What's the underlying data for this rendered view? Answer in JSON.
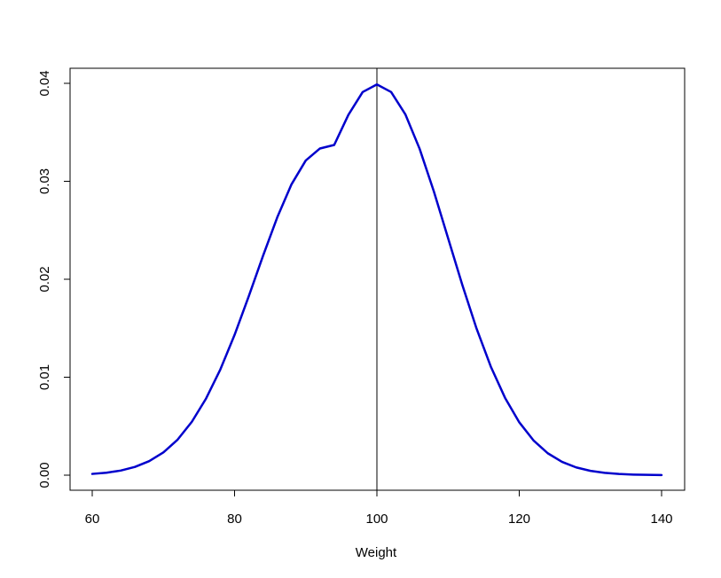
{
  "chart_data": {
    "type": "line",
    "title": "",
    "xlabel": "Weight",
    "ylabel": "",
    "xlim": [
      60,
      140
    ],
    "ylim": [
      0,
      0.04
    ],
    "x_ticks": [
      "60",
      "80",
      "100",
      "120",
      "140"
    ],
    "y_ticks": [
      "0.00",
      "0.01",
      "0.02",
      "0.03",
      "0.04"
    ],
    "grid": false,
    "legend": "none",
    "series": [
      {
        "color": "#0000cc",
        "x": [
          60,
          62,
          64,
          66,
          68,
          70,
          72,
          74,
          76,
          78,
          80,
          82,
          84,
          86,
          88,
          90,
          92,
          94,
          96,
          98,
          100,
          102,
          104,
          106,
          108,
          110,
          112,
          114,
          116,
          118,
          120,
          122,
          124,
          126,
          128,
          130,
          132,
          134,
          136,
          138,
          140
        ],
        "y": [
          0.00013,
          0.00025,
          0.00047,
          0.00084,
          0.00143,
          0.00232,
          0.00363,
          0.00545,
          0.00783,
          0.01079,
          0.01432,
          0.01828,
          0.02239,
          0.02632,
          0.02969,
          0.03212,
          0.03335,
          0.03371,
          0.03679,
          0.03911,
          0.03989,
          0.03911,
          0.03683,
          0.03332,
          0.02897,
          0.0242,
          0.01942,
          0.01497,
          0.01109,
          0.0079,
          0.0054,
          0.00355,
          0.00224,
          0.00136,
          0.00079,
          0.00044,
          0.00024,
          0.00012,
          6e-05,
          3e-05,
          1e-05
        ]
      }
    ],
    "vertical_line": {
      "x": 100,
      "color": "#000000"
    }
  }
}
